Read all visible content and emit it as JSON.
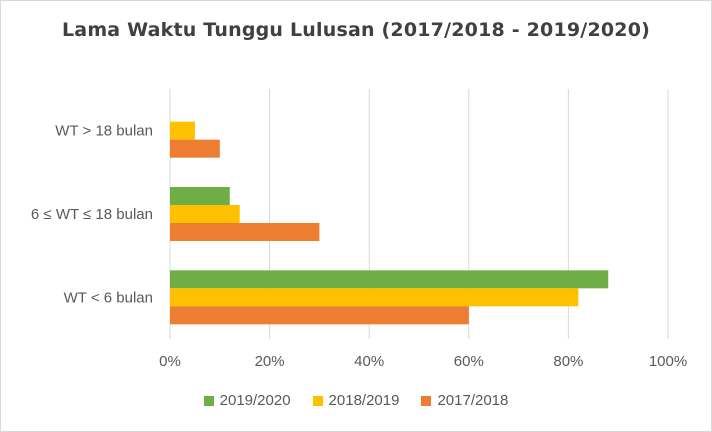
{
  "chart_data": {
    "type": "bar",
    "orientation": "horizontal",
    "title": "Lama Waktu Tunggu Lulusan (2017/2018 - 2019/2020)",
    "categories": [
      "WT < 6 bulan",
      "6 ≤ WT ≤ 18 bulan",
      "WT > 18 bulan"
    ],
    "series": [
      {
        "name": "2017/2018",
        "color": "#ED7D31",
        "values": [
          60,
          30,
          10
        ]
      },
      {
        "name": "2018/2019",
        "color": "#FFC000",
        "values": [
          82,
          14,
          5
        ]
      },
      {
        "name": "2019/2020",
        "color": "#70AD47",
        "values": [
          88,
          12,
          0
        ]
      }
    ],
    "xlim": [
      0,
      100
    ],
    "xticks": [
      "0%",
      "20%",
      "40%",
      "60%",
      "80%",
      "100%"
    ],
    "grid": true,
    "legend_position": "bottom",
    "legend_order": [
      "2019/2020",
      "2018/2019",
      "2017/2018"
    ]
  }
}
